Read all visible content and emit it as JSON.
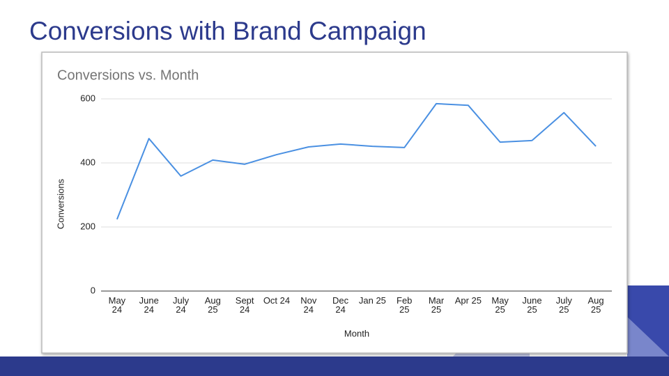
{
  "slide_title": "Conversions with Brand Campaign",
  "chart_data": {
    "type": "line",
    "title": "Conversions vs. Month",
    "x_label": "Month",
    "y_label": "Conversions",
    "categories": [
      "May 24",
      "June 24",
      "July 24",
      "Aug 25",
      "Sept 24",
      "Oct 24",
      "Nov 24",
      "Dec 24",
      "Jan 25",
      "Feb 25",
      "Mar 25",
      "Apr 25",
      "May 25",
      "June 25",
      "July 25",
      "Aug 25"
    ],
    "values": [
      224,
      476,
      359,
      409,
      396,
      426,
      450,
      459,
      452,
      448,
      585,
      580,
      465,
      470,
      557,
      452
    ],
    "color": "#4a90e2",
    "ylim": [
      0,
      600
    ],
    "yticks": [
      0,
      200,
      400,
      600
    ],
    "grid": true
  }
}
